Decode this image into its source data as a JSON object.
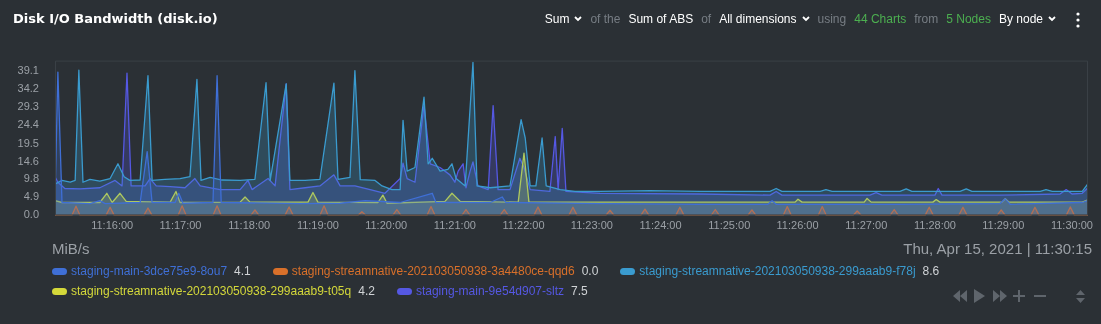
{
  "chart_data": {
    "type": "area",
    "title": "Disk I/O Bandwidth (disk.io)",
    "marker": "none",
    "legend": "bottom",
    "annotations": [
      "Sum",
      "of the",
      "Sum of ABS",
      "of",
      "All dimensions",
      "using",
      "44 Charts",
      "from",
      "5 Nodes",
      "By node",
      "Thu, Apr 15, 2021 | 11:30:15",
      "4.1",
      "0.0",
      "8.6",
      "4.2",
      "7.5",
      "MiB/s"
    ],
    "xlim": [
      11.2528,
      11.5039
    ],
    "xticks": [
      {
        "value": 11.2667,
        "label": "11:16:00"
      },
      {
        "value": 11.2833,
        "label": "11:17:00"
      },
      {
        "value": 11.3,
        "label": "11:18:00"
      },
      {
        "value": 11.3167,
        "label": "11:19:00"
      },
      {
        "value": 11.3333,
        "label": "11:20:00"
      },
      {
        "value": 11.35,
        "label": "11:21:00"
      },
      {
        "value": 11.3667,
        "label": "11:22:00"
      },
      {
        "value": 11.3833,
        "label": "11:23:00"
      },
      {
        "value": 11.4,
        "label": "11:24:00"
      },
      {
        "value": 11.4167,
        "label": "11:25:00"
      },
      {
        "value": 11.4333,
        "label": "11:26:00"
      },
      {
        "value": 11.45,
        "label": "11:27:00"
      },
      {
        "value": 11.4667,
        "label": "11:28:00"
      },
      {
        "value": 11.4833,
        "label": "11:29:00"
      },
      {
        "value": 11.5,
        "label": "11:30:00"
      }
    ],
    "ylim": [
      0,
      42
    ],
    "yticks": [
      {
        "value": 0,
        "label": "0.0"
      },
      4.9,
      9.8,
      14.6,
      19.5,
      24.4,
      29.3,
      34.2,
      39.1
    ],
    "series": [
      {
        "name": "staging-main-3dce75e9-8ou7",
        "color": "#3f6fd6",
        "x": [
          11.2528,
          11.2535,
          11.2545,
          11.2613,
          11.2637,
          11.265,
          11.2735,
          11.2752,
          11.2764,
          11.282,
          11.2829,
          11.2839,
          11.2912,
          11.2922,
          11.2932,
          11.3124,
          11.3221,
          11.3282,
          11.3367,
          11.3445,
          11.3454,
          11.3586,
          11.3615,
          11.3624,
          11.3853,
          11.4096,
          11.4261,
          11.4271,
          11.4281,
          11.4582,
          11.4825,
          11.4838,
          11.485,
          11.5025,
          11.5039
        ],
        "values": [
          4.0,
          38.9,
          3.5,
          3.2,
          4.0,
          3.2,
          3.5,
          17.3,
          3.5,
          3.5,
          6.0,
          3.3,
          3.5,
          37.9,
          3.5,
          3.2,
          3.3,
          4.0,
          3.5,
          6.0,
          3.5,
          3.5,
          5.0,
          3.5,
          3.2,
          3.0,
          3.0,
          4.0,
          3.0,
          3.0,
          3.2,
          4.5,
          3.0,
          3.5,
          4.1
        ]
      },
      {
        "name": "staging-streamnative-202103050938-3a4480ce-qqd6",
        "color": "#d9702a",
        "x": [
          11.2528,
          11.2569,
          11.2579,
          11.2589,
          11.2652,
          11.2662,
          11.2672,
          11.2744,
          11.2754,
          11.2764,
          11.2827,
          11.2837,
          11.2847,
          11.2912,
          11.2922,
          11.2932,
          11.3004,
          11.3014,
          11.3024,
          11.3087,
          11.3097,
          11.3107,
          11.3172,
          11.3182,
          11.3192,
          11.3264,
          11.3274,
          11.3284,
          11.3349,
          11.3359,
          11.3369,
          11.3432,
          11.3442,
          11.3452,
          11.3517,
          11.3527,
          11.3537,
          11.361,
          11.362,
          11.363,
          11.3692,
          11.3702,
          11.3712,
          11.3777,
          11.3787,
          11.3797,
          11.3867,
          11.3877,
          11.3887,
          11.3952,
          11.3962,
          11.3972,
          11.4037,
          11.4047,
          11.4057,
          11.4123,
          11.4133,
          11.4143,
          11.4212,
          11.4222,
          11.4232,
          11.4298,
          11.4308,
          11.4318,
          11.4383,
          11.4393,
          11.4403,
          11.4468,
          11.4478,
          11.4488,
          11.4558,
          11.4568,
          11.4578,
          11.4643,
          11.4653,
          11.4663,
          11.4725,
          11.4735,
          11.4745,
          11.4818,
          11.4828,
          11.4838,
          11.49,
          11.491,
          11.492,
          11.4986,
          11.4996,
          11.5006,
          11.5039
        ],
        "values": [
          0,
          0,
          2.5,
          0,
          0,
          2.2,
          0,
          0,
          2.0,
          0,
          0,
          2.6,
          0,
          0,
          2.6,
          0,
          0,
          1.5,
          0,
          0,
          2.3,
          0,
          0,
          2.6,
          0,
          0,
          1.0,
          0,
          0,
          1.6,
          0,
          0,
          2.4,
          0,
          0,
          1.6,
          0,
          0,
          1.6,
          0,
          0,
          2.3,
          0,
          0,
          2.2,
          0,
          0,
          1.4,
          0,
          0,
          1.7,
          0,
          0,
          2.2,
          0,
          0,
          1.6,
          0,
          0,
          1.5,
          0,
          0,
          2.4,
          0,
          0,
          2.4,
          0,
          0,
          1.2,
          0,
          0,
          1.6,
          0,
          0,
          2.2,
          0,
          0,
          2.2,
          0,
          0,
          1.5,
          0,
          0,
          2.2,
          0,
          0,
          2.3,
          0,
          0
        ]
      },
      {
        "name": "staging-streamnative-202103050938-299aaab9-f78j",
        "color": "#3a9bcf",
        "x": [
          11.2528,
          11.2545,
          11.2565,
          11.2577,
          11.2586,
          11.2596,
          11.2613,
          11.2637,
          11.2662,
          11.2681,
          11.2696,
          11.271,
          11.2735,
          11.2754,
          11.2764,
          11.2795,
          11.2832,
          11.2856,
          11.2873,
          11.2883,
          11.2905,
          11.2934,
          11.2978,
          11.3014,
          11.3041,
          11.3051,
          11.309,
          11.3099,
          11.3136,
          11.3172,
          11.3206,
          11.3216,
          11.3245,
          11.3257,
          11.327,
          11.3306,
          11.3323,
          11.3347,
          11.3367,
          11.3374,
          11.3384,
          11.3403,
          11.3425,
          11.3435,
          11.3445,
          11.3464,
          11.3483,
          11.3493,
          11.3503,
          11.3525,
          11.3544,
          11.3554,
          11.3586,
          11.3634,
          11.3661,
          11.3671,
          11.3683,
          11.3697,
          11.3712,
          11.3722,
          11.3756,
          11.3792,
          11.3853,
          11.3974,
          11.4096,
          11.4266,
          11.4281,
          11.4295,
          11.4388,
          11.4402,
          11.4417,
          11.4582,
          11.4597,
          11.4611,
          11.4728,
          11.4743,
          11.4757,
          11.4923,
          11.4937,
          11.4952,
          11.5025,
          11.5039
        ],
        "values": [
          8.5,
          9.5,
          9.0,
          9.5,
          39.4,
          9.0,
          9.8,
          9.3,
          10.0,
          14.0,
          10.5,
          9.5,
          9.6,
          37.9,
          9.5,
          9.8,
          10.0,
          10.5,
          36.9,
          9.5,
          10.3,
          9.6,
          9.5,
          9.8,
          36.0,
          9.5,
          35.7,
          9.5,
          9.5,
          9.8,
          35.9,
          9.8,
          10.3,
          39.3,
          9.7,
          9.5,
          8.0,
          7.0,
          7.0,
          25.8,
          12.0,
          13.0,
          32.1,
          14.0,
          15.5,
          12.0,
          12.5,
          14.0,
          10.0,
          8.0,
          41.5,
          8.0,
          7.5,
          8.0,
          26.0,
          21.0,
          8.0,
          8.0,
          21.0,
          8.0,
          7.0,
          6.5,
          6.5,
          6.7,
          6.5,
          6.5,
          7.3,
          6.5,
          6.5,
          7.0,
          6.5,
          6.5,
          7.2,
          6.5,
          6.5,
          7.2,
          6.5,
          6.5,
          7.0,
          6.5,
          6.5,
          8.6
        ]
      },
      {
        "name": "staging-streamnative-202103050938-299aaab9-t05q",
        "color": "#d4d83a",
        "x": [
          11.2528,
          11.2545,
          11.2637,
          11.2654,
          11.2667,
          11.2686,
          11.2701,
          11.2808,
          11.2822,
          11.2832,
          11.2978,
          11.299,
          11.3002,
          11.3143,
          11.3155,
          11.3167,
          11.3313,
          11.3325,
          11.3335,
          11.3476,
          11.3493,
          11.3513,
          11.3654,
          11.3668,
          11.368,
          11.3853,
          11.4096,
          11.4327,
          11.4334,
          11.4344,
          11.4495,
          11.4502,
          11.4512,
          11.4662,
          11.467,
          11.4679,
          11.483,
          11.4838,
          11.4847,
          11.5025,
          11.5039
        ],
        "values": [
          4.0,
          3.5,
          3.5,
          6.0,
          3.5,
          6.0,
          3.8,
          3.6,
          6.5,
          3.5,
          3.6,
          5.0,
          3.6,
          3.6,
          6.2,
          3.6,
          3.5,
          5.5,
          3.3,
          3.8,
          6.0,
          3.8,
          3.6,
          16.9,
          3.6,
          3.6,
          3.6,
          3.6,
          4.4,
          3.6,
          3.6,
          4.6,
          3.6,
          3.6,
          4.3,
          3.6,
          3.6,
          4.5,
          3.6,
          3.6,
          4.2
        ]
      },
      {
        "name": "staging-main-9e54d907-sltz",
        "color": "#5558e3",
        "x": [
          11.2528,
          11.2535,
          11.2552,
          11.2589,
          11.2637,
          11.2674,
          11.2691,
          11.2703,
          11.2713,
          11.2747,
          11.2759,
          11.2774,
          11.2808,
          11.2844,
          11.2868,
          11.2881,
          11.2929,
          11.2978,
          11.2997,
          11.3007,
          11.3046,
          11.3063,
          11.309,
          11.3099,
          11.3136,
          11.3172,
          11.3206,
          11.3221,
          11.3257,
          11.3294,
          11.333,
          11.3367,
          11.3374,
          11.3384,
          11.3403,
          11.3425,
          11.344,
          11.3464,
          11.3488,
          11.35,
          11.3508,
          11.352,
          11.3527,
          11.3537,
          11.3544,
          11.3556,
          11.3581,
          11.3593,
          11.3605,
          11.3634,
          11.3658,
          11.3668,
          11.3683,
          11.3731,
          11.3744,
          11.3751,
          11.3761,
          11.377,
          11.3853,
          11.4096,
          11.4266,
          11.4281,
          11.4295,
          11.4509,
          11.4524,
          11.4538,
          11.4667,
          11.4675,
          11.4684,
          11.4825,
          11.4971,
          11.4986,
          11.5,
          11.5025,
          11.5039
        ],
        "values": [
          10.5,
          9.0,
          7.3,
          7.2,
          7.5,
          9.5,
          8.0,
          38.6,
          8.0,
          8.0,
          10.0,
          8.0,
          7.8,
          7.5,
          10.0,
          8.0,
          7.0,
          7.0,
          9.5,
          7.0,
          10.0,
          8.0,
          35.7,
          7.0,
          7.5,
          8.0,
          11.0,
          8.0,
          8.0,
          7.0,
          6.0,
          10.0,
          14.2,
          10.0,
          9.0,
          30.0,
          14.0,
          13.0,
          11.0,
          9.0,
          12.0,
          14.0,
          7.5,
          12.0,
          14.5,
          8.0,
          7.0,
          29.8,
          7.0,
          7.0,
          15.5,
          13.0,
          7.0,
          6.5,
          21.4,
          7.0,
          23.6,
          6.5,
          6.0,
          5.8,
          5.5,
          6.5,
          5.5,
          5.5,
          6.2,
          5.5,
          5.5,
          7.3,
          5.5,
          5.5,
          5.8,
          7.0,
          5.8,
          6.0,
          7.5
        ]
      }
    ]
  }
}
